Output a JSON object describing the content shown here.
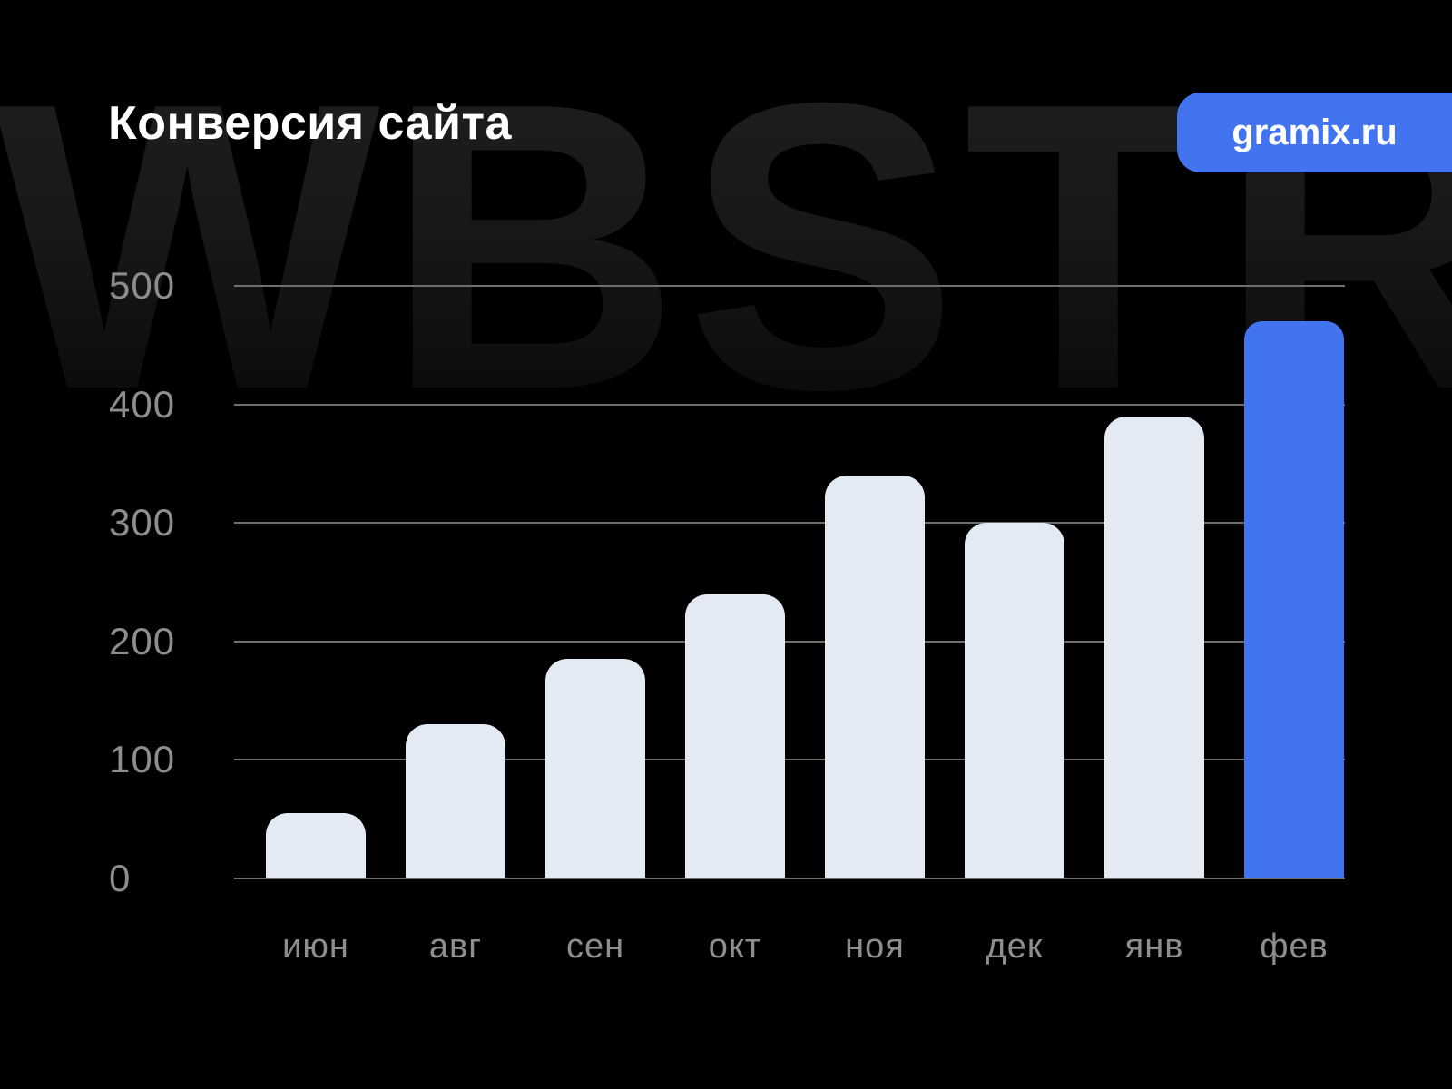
{
  "page": {
    "background_color": "#000000"
  },
  "watermark": {
    "text": "WBSTR",
    "color_top": "#1f1f1f"
  },
  "header": {
    "title": "Конверсия сайта",
    "badge": {
      "label": "gramix.ru",
      "color": "#4374f0"
    }
  },
  "chart_data": {
    "type": "bar",
    "title": "Конверсия сайта",
    "categories": [
      "июн",
      "авг",
      "сен",
      "окт",
      "ноя",
      "дек",
      "янв",
      "фев"
    ],
    "values": [
      55,
      130,
      185,
      240,
      340,
      300,
      390,
      470
    ],
    "xlabel": "",
    "ylabel": "",
    "ylim": [
      0,
      500
    ],
    "y_ticks": [
      0,
      100,
      200,
      300,
      400,
      500
    ],
    "grid": "horizontal",
    "legend": "none",
    "bar_color": "#e3eaf4",
    "highlight_color": "#4374f0",
    "highlight_index": 7,
    "gridline_color": "#6f6f6f",
    "tick_label_color": "#8d8d8d"
  }
}
